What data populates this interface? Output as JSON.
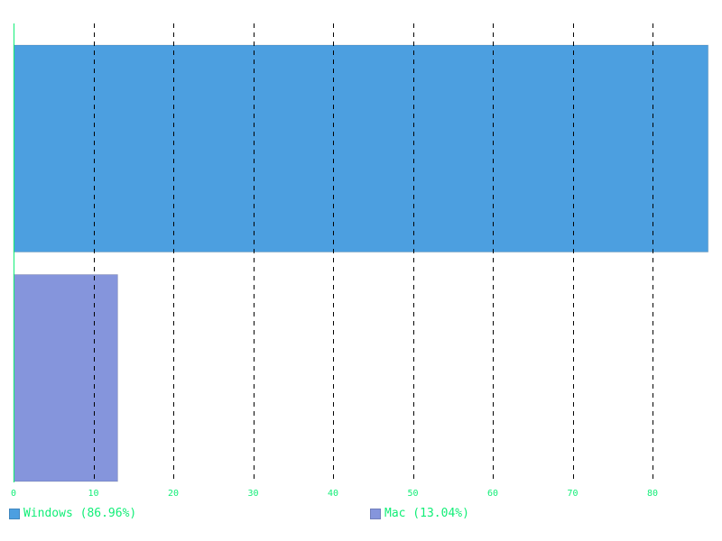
{
  "chart_data": {
    "type": "bar",
    "orientation": "horizontal",
    "categories": [
      "Windows (86.96%)",
      "Mac (13.04%)"
    ],
    "values": [
      86.96,
      13.04
    ],
    "colors": [
      "#4c9fe0",
      "#8595dc"
    ],
    "xlim": [
      0,
      87
    ],
    "x_ticks": [
      "0",
      "10",
      "20",
      "30",
      "40",
      "50",
      "60",
      "70",
      "80"
    ],
    "grid": true,
    "grid_style": "dashed-vertical",
    "legend_position": "bottom",
    "axis_color": "#11ee77",
    "tick_color": "#11ee77",
    "title": "",
    "xlabel": "",
    "ylabel": ""
  },
  "legend": {
    "items": [
      {
        "label": "Windows (86.96%)",
        "color": "#4c9fe0"
      },
      {
        "label": "Mac (13.04%)",
        "color": "#8595dc"
      }
    ]
  }
}
